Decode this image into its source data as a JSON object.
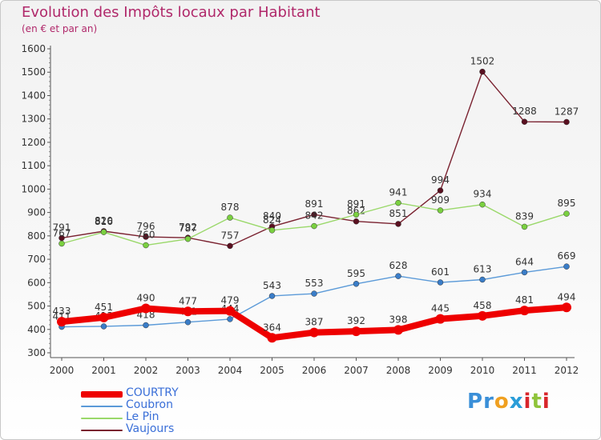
{
  "header": {
    "title": "Evolution des Impôts locaux par Habitant",
    "subtitle": "(en € et par an)"
  },
  "brand": {
    "text": "Proxiti",
    "letters": [
      {
        "ch": "P",
        "color": "#3a8fd8"
      },
      {
        "ch": "r",
        "color": "#3a8fd8"
      },
      {
        "ch": "o",
        "color": "#f0a020"
      },
      {
        "ch": "x",
        "color": "#2a9dd8"
      },
      {
        "ch": "i",
        "color": "#d8262b"
      },
      {
        "ch": "t",
        "color": "#8fc43a"
      },
      {
        "ch": "i",
        "color": "#d8262b"
      }
    ]
  },
  "chart_data": {
    "type": "line",
    "x": [
      "2000",
      "2001",
      "2002",
      "2003",
      "2004",
      "2005",
      "2006",
      "2007",
      "2008",
      "2009",
      "2010",
      "2011",
      "2012"
    ],
    "ylim": [
      300,
      1600
    ],
    "yticks": [
      "300",
      "400",
      "500",
      "600",
      "700",
      "800",
      "900",
      "1000",
      "1100",
      "1200",
      "1300",
      "1400",
      "1500",
      "1600"
    ],
    "title": "Evolution des Impôts locaux par Habitant",
    "subtitle": "(en € et par an)",
    "grid": false,
    "legend_position": "bottom-left",
    "series": [
      {
        "name": "Vaujours",
        "color": "#7a2230",
        "marker": "#5a1020",
        "values": [
          791,
          820,
          796,
          792,
          757,
          840,
          891,
          862,
          851,
          994,
          1502,
          1288,
          1287
        ]
      },
      {
        "name": "Le Pin",
        "color": "#9ad86a",
        "marker": "#7ad040",
        "values": [
          767,
          816,
          760,
          787,
          878,
          824,
          842,
          891,
          941,
          909,
          934,
          839,
          895
        ]
      },
      {
        "name": "Coubron",
        "color": "#5b9ad8",
        "marker": "#3a7dc8",
        "values": [
          411,
          413,
          418,
          431,
          444,
          543,
          553,
          595,
          628,
          601,
          613,
          644,
          669
        ]
      },
      {
        "name": "COURTRY",
        "color": "#ee0000",
        "marker": "#ee0000",
        "values": [
          433,
          451,
          490,
          477,
          479,
          364,
          387,
          392,
          398,
          445,
          458,
          481,
          494
        ]
      }
    ],
    "legend_order": [
      "COURTRY",
      "Coubron",
      "Le Pin",
      "Vaujours"
    ]
  }
}
